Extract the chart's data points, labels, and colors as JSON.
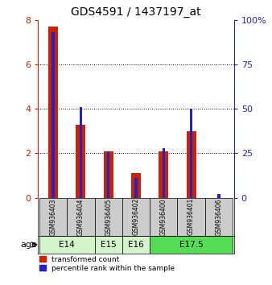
{
  "title": "GDS4591 / 1437197_at",
  "samples": [
    "GSM936403",
    "GSM936404",
    "GSM936405",
    "GSM936402",
    "GSM936400",
    "GSM936401",
    "GSM936406"
  ],
  "red_values": [
    7.7,
    3.3,
    2.1,
    1.1,
    2.1,
    3.0,
    0.0
  ],
  "blue_values_pct": [
    93,
    51,
    26,
    11,
    28,
    50,
    2
  ],
  "ylim_left": [
    0,
    8
  ],
  "ylim_right": [
    0,
    100
  ],
  "yticks_left": [
    0,
    2,
    4,
    6,
    8
  ],
  "yticks_right": [
    0,
    25,
    50,
    75,
    100
  ],
  "red_bar_width": 0.35,
  "blue_bar_width": 0.1,
  "red_color": "#cc2200",
  "blue_color": "#2222cc",
  "bg_color": "#ffffff",
  "sample_bg": "#cccccc",
  "age_groups": [
    {
      "start": 0,
      "end": 2,
      "label": "E14",
      "color": "#d4f5cc"
    },
    {
      "start": 2,
      "end": 3,
      "label": "E15",
      "color": "#d4f5cc"
    },
    {
      "start": 3,
      "end": 4,
      "label": "E16",
      "color": "#d4f5cc"
    },
    {
      "start": 4,
      "end": 7,
      "label": "E17.5",
      "color": "#55dd55"
    }
  ],
  "title_fontsize": 10
}
